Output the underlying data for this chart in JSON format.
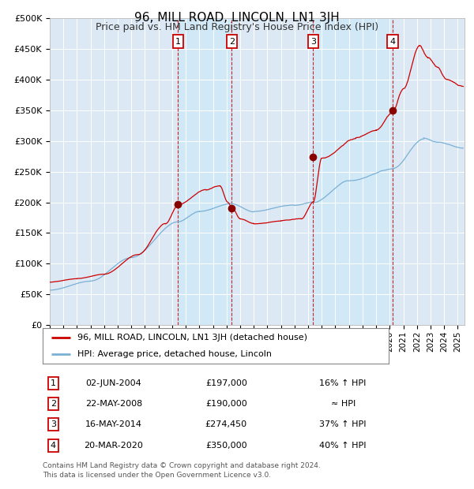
{
  "title": "96, MILL ROAD, LINCOLN, LN1 3JH",
  "subtitle": "Price paid vs. HM Land Registry's House Price Index (HPI)",
  "ylim": [
    0,
    500000
  ],
  "yticks": [
    0,
    50000,
    100000,
    150000,
    200000,
    250000,
    300000,
    350000,
    400000,
    450000,
    500000
  ],
  "xlim_start": 1995.0,
  "xlim_end": 2025.5,
  "background_color": "#ffffff",
  "plot_bg_color": "#dce9f5",
  "grid_color": "#cccccc",
  "shade_color": "#d0e8f8",
  "transactions": [
    {
      "num": 1,
      "date": "02-JUN-2004",
      "price": 197000,
      "year": 2004.42,
      "hpi_rel": "16% ↑ HPI"
    },
    {
      "num": 2,
      "date": "22-MAY-2008",
      "price": 190000,
      "year": 2008.39,
      "hpi_rel": "≈ HPI"
    },
    {
      "num": 3,
      "date": "16-MAY-2014",
      "price": 274450,
      "year": 2014.37,
      "hpi_rel": "37% ↑ HPI"
    },
    {
      "num": 4,
      "date": "20-MAR-2020",
      "price": 350000,
      "year": 2020.22,
      "hpi_rel": "40% ↑ HPI"
    }
  ],
  "legend_house": "96, MILL ROAD, LINCOLN, LN1 3JH (detached house)",
  "legend_hpi": "HPI: Average price, detached house, Lincoln",
  "footnote": "Contains HM Land Registry data © Crown copyright and database right 2024.\nThis data is licensed under the Open Government Licence v3.0.",
  "red_color": "#cc0000",
  "blue_color": "#7ab0d4",
  "dot_color": "#880000",
  "title_fontsize": 11,
  "subtitle_fontsize": 9,
  "tick_fontsize": 8,
  "label_fontsize": 8
}
